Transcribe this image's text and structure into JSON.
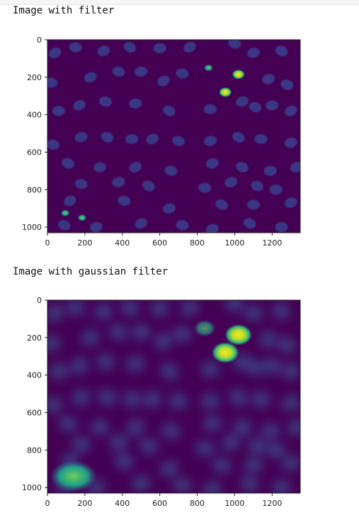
{
  "cells": [
    {
      "caption": "Image with filter",
      "chart_data": {
        "type": "heatmap",
        "title": "",
        "xlabel": "",
        "ylabel": "",
        "x_ticks": [
          0,
          200,
          400,
          600,
          800,
          1000,
          1200
        ],
        "y_ticks": [
          0,
          200,
          400,
          600,
          800,
          1000
        ],
        "xlim": [
          0,
          1350
        ],
        "ylim": [
          1030,
          0
        ],
        "colormap": "viridis",
        "background_color": "#440154",
        "blob_color": "#3b3f8c",
        "bright_spots": [
          {
            "x": 860,
            "y": 150,
            "intensity": "medium"
          },
          {
            "x": 1020,
            "y": 185,
            "intensity": "high"
          },
          {
            "x": 950,
            "y": 280,
            "intensity": "high"
          },
          {
            "x": 95,
            "y": 925,
            "intensity": "medium"
          },
          {
            "x": 185,
            "y": 950,
            "intensity": "medium"
          }
        ]
      }
    },
    {
      "caption": "Image with gaussian filter",
      "chart_data": {
        "type": "heatmap",
        "title": "",
        "xlabel": "",
        "ylabel": "",
        "x_ticks": [
          0,
          200,
          400,
          600,
          800,
          1000,
          1200
        ],
        "y_ticks": [
          0,
          200,
          400,
          600,
          800,
          1000
        ],
        "xlim": [
          0,
          1350
        ],
        "ylim": [
          1030,
          0
        ],
        "colormap": "viridis",
        "background_color": "#440154",
        "blob_color": "#3b4b8c",
        "bright_spots": [
          {
            "x": 1020,
            "y": 185,
            "intensity": "high"
          },
          {
            "x": 950,
            "y": 280,
            "intensity": "high"
          },
          {
            "x": 840,
            "y": 150,
            "intensity": "low"
          },
          {
            "x": 140,
            "y": 940,
            "intensity": "medium"
          }
        ]
      }
    }
  ]
}
